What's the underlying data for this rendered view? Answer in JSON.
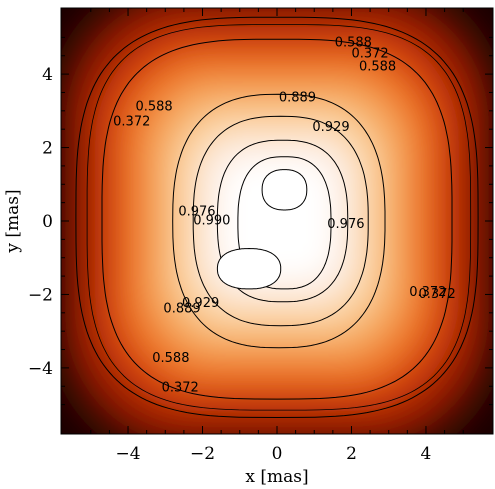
{
  "chart_data": {
    "type": "heatmap",
    "title": "",
    "xlabel": "x [mas]",
    "ylabel": "y [mas]",
    "xlim": [
      -5.8,
      5.8
    ],
    "ylim": [
      -5.8,
      5.8
    ],
    "grid": false,
    "colormap": [
      "#1a0000",
      "#4a0a00",
      "#9c1e00",
      "#d4430a",
      "#ef7a2a",
      "#f6ab62",
      "#fbd3a2",
      "#fdece0",
      "#ffffff"
    ],
    "x_ticks": [
      {
        "value": -4,
        "label": "−4"
      },
      {
        "value": -2,
        "label": "−2"
      },
      {
        "value": 0,
        "label": "0"
      },
      {
        "value": 2,
        "label": "2"
      },
      {
        "value": 4,
        "label": "4"
      }
    ],
    "y_ticks": [
      {
        "value": -4,
        "label": "−4"
      },
      {
        "value": -2,
        "label": "−2"
      },
      {
        "value": 0,
        "label": "0"
      },
      {
        "value": 2,
        "label": "2"
      },
      {
        "value": 4,
        "label": "4"
      }
    ],
    "contours": [
      {
        "level": 0.372,
        "x_half": 5.4,
        "y_half": 5.45,
        "cx": 0.0,
        "cy": 0.1
      },
      {
        "level": 0.588,
        "x_half": 4.7,
        "y_half": 4.9,
        "cx": 0.0,
        "cy": 0.05
      },
      {
        "level": 0.889,
        "x_half": 2.85,
        "y_half": 3.45,
        "cx": 0.05,
        "cy": 0.0
      },
      {
        "level": 0.929,
        "x_half": 2.35,
        "y_half": 2.85,
        "cx": 0.1,
        "cy": 0.0
      },
      {
        "level": 0.976,
        "x_half": 1.75,
        "y_half": 2.2,
        "cx": 0.15,
        "cy": 0.0
      },
      {
        "level": 0.99,
        "x_half": 1.25,
        "y_half": 1.8,
        "cx": 0.2,
        "cy": -0.05
      }
    ],
    "peaks": [
      {
        "x": 0.2,
        "y": 0.85,
        "rx": 0.6,
        "ry": 0.55
      },
      {
        "x": -0.75,
        "y": -1.3,
        "rx": 0.85,
        "ry": 0.55
      }
    ],
    "contour_labels": [
      {
        "text": "0.889",
        "x": 0.55,
        "y": 3.35
      },
      {
        "text": "0.929",
        "x": 1.45,
        "y": 2.55
      },
      {
        "text": "0.976",
        "x": 1.85,
        "y": -0.1
      },
      {
        "text": "0.990",
        "x": -1.75,
        "y": 0.0
      },
      {
        "text": "0.976",
        "x": -2.15,
        "y": 0.25
      },
      {
        "text": "0.929",
        "x": -2.05,
        "y": -2.25
      },
      {
        "text": "0.889",
        "x": -2.55,
        "y": -2.4
      },
      {
        "text": "0.588",
        "x": -3.3,
        "y": 3.1
      },
      {
        "text": "0.588",
        "x": 2.7,
        "y": 4.2
      },
      {
        "text": "0.588",
        "x": -2.85,
        "y": -3.75
      },
      {
        "text": "0.588",
        "x": 2.05,
        "y": 4.85
      },
      {
        "text": "0.372",
        "x": 2.5,
        "y": 4.55
      },
      {
        "text": "0.372",
        "x": -3.9,
        "y": 2.7
      },
      {
        "text": "0.372",
        "x": -2.6,
        "y": -4.55
      },
      {
        "text": "0.372",
        "x": 4.05,
        "y": -1.95
      },
      {
        "text": "0.372",
        "x": 4.3,
        "y": -2.0
      }
    ]
  }
}
